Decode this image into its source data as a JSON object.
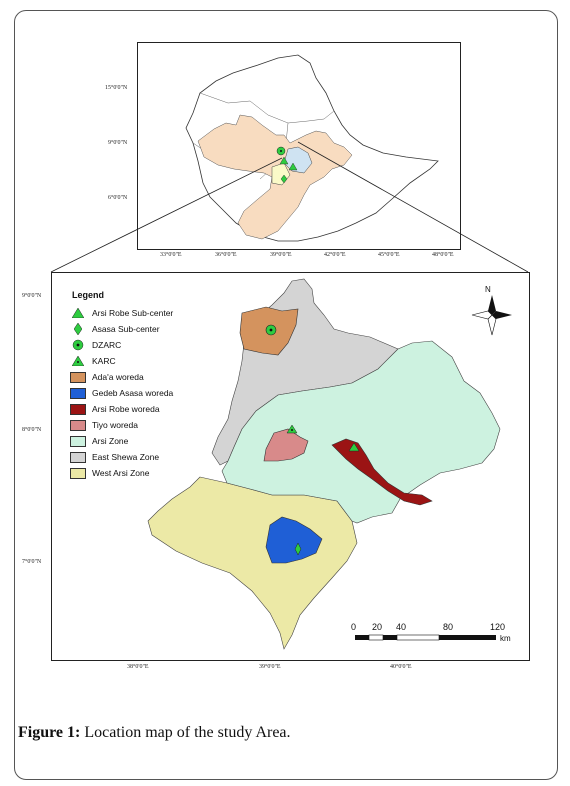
{
  "inset_map": {
    "y_ticks": [
      "15°0'0\"N",
      "9°0'0\"N",
      "6°0'0\"N"
    ],
    "x_ticks": [
      "33°0'0\"E",
      "36°0'0\"E",
      "39°0'0\"E",
      "42°0'0\"E",
      "45°0'0\"E",
      "48°0'0\"E"
    ]
  },
  "main_map": {
    "y_ticks": [
      "9°0'0\"N",
      "8°0'0\"N",
      "7°0'0\"N"
    ],
    "x_ticks": [
      "38°0'0\"E",
      "39°0'0\"E",
      "40°0'0\"E"
    ],
    "north_label": "N",
    "legend": {
      "title": "Legend",
      "items": [
        {
          "label": "Arsi Robe Sub-center",
          "symbol": "triangle",
          "color": "#2ecc40"
        },
        {
          "label": "Asasa Sub-center",
          "symbol": "diamond",
          "color": "#2ecc40"
        },
        {
          "label": "DZARC",
          "symbol": "circle-dot",
          "color": "#2ecc40"
        },
        {
          "label": "KARC",
          "symbol": "triangle-dot",
          "color": "#2ecc40"
        },
        {
          "label": "Ada'a woreda",
          "symbol": "fill",
          "color": "#d4935e"
        },
        {
          "label": "Gedeb Asasa woreda",
          "symbol": "fill",
          "color": "#1f5fd6"
        },
        {
          "label": "Arsi Robe woreda",
          "symbol": "fill",
          "color": "#9b1414"
        },
        {
          "label": "Tiyo woreda",
          "symbol": "fill",
          "color": "#d88a8a"
        },
        {
          "label": "Arsi Zone",
          "symbol": "fill",
          "color": "#cdf2e0"
        },
        {
          "label": "East Shewa Zone",
          "symbol": "fill",
          "color": "#d4d4d4"
        },
        {
          "label": "West Arsi Zone",
          "symbol": "fill",
          "color": "#ece9a6"
        }
      ]
    },
    "scale_bar": {
      "ticks": [
        "0",
        "20",
        "40",
        "80",
        "120"
      ],
      "unit": "km"
    }
  },
  "caption": {
    "label": "Figure 1:",
    "text": " Location map of the study Area."
  }
}
